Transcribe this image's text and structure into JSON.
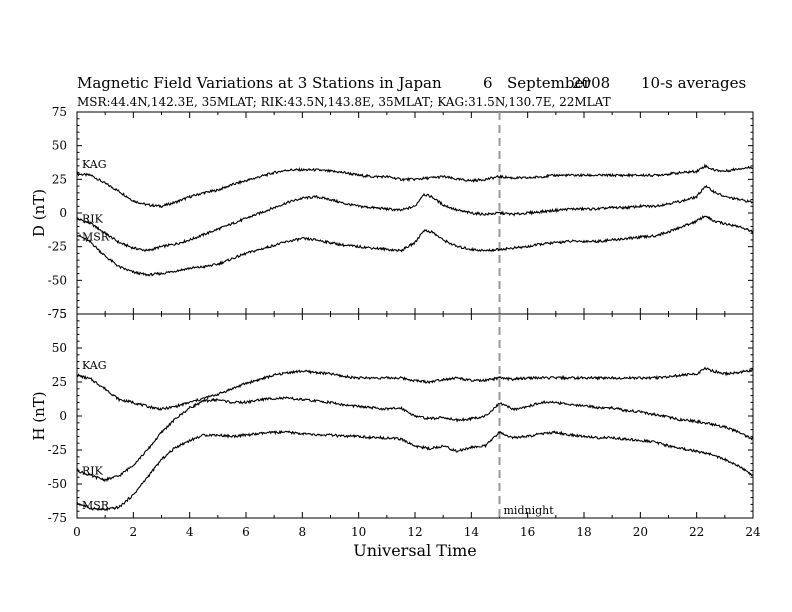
{
  "header": {
    "title": "Magnetic Field Variations at 3 Stations in Japan",
    "day": "6",
    "month": "September",
    "year": "2008",
    "averaging": "10-s averages",
    "stations_line": "MSR:44.4N,142.3E, 35MLAT;  RIK:43.5N,143.8E, 35MLAT;  KAG:31.5N,130.7E, 22MLAT"
  },
  "colors": {
    "trace": "#000000",
    "midnight_line": "#999999"
  },
  "chart_data": [
    {
      "type": "line",
      "ylabel": "D (nT)",
      "ylim": [
        -75,
        75
      ],
      "yticks": [
        75,
        50,
        25,
        0,
        -25,
        -50,
        -75
      ],
      "xlim": [
        0,
        24
      ],
      "grid": false,
      "series": [
        {
          "name": "KAG",
          "x": [
            0,
            0.5,
            1,
            1.5,
            2,
            2.5,
            3,
            3.5,
            4,
            4.5,
            5,
            5.5,
            6,
            6.5,
            7,
            7.5,
            8,
            8.5,
            9,
            9.5,
            10,
            10.5,
            11,
            11.5,
            12,
            12.5,
            13,
            13.5,
            14,
            14.5,
            15,
            15.5,
            16,
            16.5,
            17,
            17.5,
            18,
            18.5,
            19,
            19.5,
            20,
            20.5,
            21,
            21.5,
            22,
            22.3,
            22.6,
            23,
            23.5,
            24
          ],
          "y": [
            29,
            28,
            22,
            16,
            9,
            6,
            5,
            8,
            12,
            15,
            17,
            21,
            24,
            27,
            30,
            32,
            32,
            32,
            31,
            30,
            28,
            27,
            27,
            25,
            25,
            26,
            27,
            25,
            24,
            25,
            27,
            26,
            26,
            27,
            28,
            28,
            28,
            28,
            28,
            28,
            28,
            28,
            29,
            30,
            31,
            35,
            32,
            31,
            33,
            34
          ]
        },
        {
          "name": "RIK",
          "x": [
            0,
            0.5,
            1,
            1.5,
            2,
            2.5,
            3,
            3.5,
            4,
            4.5,
            5,
            5.5,
            6,
            6.5,
            7,
            7.5,
            8,
            8.5,
            9,
            9.5,
            10,
            10.5,
            11,
            11.5,
            12,
            12.3,
            12.6,
            13,
            13.5,
            14,
            14.5,
            15,
            15.5,
            16,
            16.5,
            17,
            17.5,
            18,
            18.5,
            19,
            19.5,
            20,
            20.5,
            21,
            21.5,
            22,
            22.3,
            22.6,
            23,
            23.5,
            24
          ],
          "y": [
            -4,
            -8,
            -15,
            -22,
            -26,
            -28,
            -25,
            -23,
            -20,
            -16,
            -12,
            -8,
            -4,
            0,
            4,
            8,
            11,
            12,
            10,
            7,
            5,
            4,
            3,
            2,
            5,
            14,
            12,
            6,
            2,
            0,
            -1,
            0,
            -1,
            0,
            1,
            2,
            3,
            3,
            3,
            4,
            4,
            5,
            5,
            7,
            9,
            12,
            20,
            16,
            12,
            10,
            8
          ]
        },
        {
          "name": "MSR",
          "x": [
            0,
            0.5,
            1,
            1.5,
            2,
            2.5,
            3,
            3.5,
            4,
            4.5,
            5,
            5.5,
            6,
            6.5,
            7,
            7.5,
            8,
            8.5,
            9,
            9.5,
            10,
            10.5,
            11,
            11.5,
            12,
            12.3,
            12.6,
            13,
            13.5,
            14,
            14.5,
            15,
            15.5,
            16,
            16.5,
            17,
            17.5,
            18,
            18.5,
            19,
            19.5,
            20,
            20.5,
            21,
            21.5,
            22,
            22.3,
            22.6,
            23,
            23.5,
            24
          ],
          "y": [
            -16,
            -22,
            -32,
            -40,
            -44,
            -46,
            -45,
            -43,
            -41,
            -40,
            -38,
            -34,
            -30,
            -27,
            -24,
            -21,
            -19,
            -20,
            -22,
            -24,
            -25,
            -26,
            -27,
            -28,
            -22,
            -13,
            -14,
            -20,
            -25,
            -27,
            -28,
            -27,
            -26,
            -25,
            -23,
            -22,
            -21,
            -21,
            -21,
            -20,
            -19,
            -18,
            -17,
            -14,
            -10,
            -6,
            -2,
            -6,
            -8,
            -10,
            -14
          ]
        }
      ]
    },
    {
      "type": "line",
      "ylabel": "H (nT)",
      "ylim": [
        -75,
        75
      ],
      "yticks": [
        75,
        50,
        25,
        0,
        -25,
        -50,
        -75
      ],
      "xlim": [
        0,
        24
      ],
      "xticks": [
        0,
        2,
        4,
        6,
        8,
        10,
        12,
        14,
        16,
        18,
        20,
        22,
        24
      ],
      "xlabel": "Universal Time",
      "grid": false,
      "annotations": [
        {
          "text": "midnight",
          "x": 15
        }
      ],
      "series": [
        {
          "name": "KAG",
          "x": [
            0,
            0.5,
            1,
            1.5,
            2,
            2.5,
            3,
            3.5,
            4,
            4.5,
            5,
            5.5,
            6,
            6.5,
            7,
            7.5,
            8,
            8.5,
            9,
            9.5,
            10,
            10.5,
            11,
            11.5,
            12,
            12.5,
            13,
            13.5,
            14,
            14.5,
            15,
            15.5,
            16,
            16.5,
            17,
            17.5,
            18,
            18.5,
            19,
            19.5,
            20,
            20.5,
            21,
            21.5,
            22,
            22.3,
            22.6,
            23,
            23.5,
            24
          ],
          "y": [
            30,
            27,
            20,
            12,
            10,
            7,
            5,
            7,
            10,
            13,
            16,
            20,
            24,
            27,
            30,
            32,
            33,
            32,
            31,
            29,
            28,
            28,
            28,
            28,
            26,
            25,
            27,
            28,
            26,
            26,
            28,
            27,
            28,
            28,
            28,
            28,
            28,
            28,
            28,
            28,
            28,
            28,
            29,
            30,
            31,
            35,
            33,
            31,
            32,
            34
          ]
        },
        {
          "name": "RIK",
          "x": [
            0,
            0.5,
            1,
            1.5,
            2,
            2.5,
            3,
            3.5,
            4,
            4.5,
            5,
            5.5,
            6,
            6.5,
            7,
            7.5,
            8,
            8.5,
            9,
            9.5,
            10,
            10.5,
            11,
            11.5,
            12,
            12.5,
            13,
            13.5,
            14,
            14.5,
            15,
            15.2,
            15.5,
            16,
            16.5,
            17,
            17.5,
            18,
            18.5,
            19,
            19.5,
            20,
            20.5,
            21,
            21.5,
            22,
            22.5,
            23,
            23.5,
            24
          ],
          "y": [
            -40,
            -44,
            -47,
            -44,
            -36,
            -25,
            -12,
            -2,
            6,
            11,
            12,
            10,
            10,
            12,
            13,
            13,
            12,
            11,
            10,
            8,
            7,
            6,
            5,
            6,
            0,
            -2,
            -1,
            -3,
            -2,
            0,
            9,
            8,
            5,
            7,
            10,
            10,
            8,
            8,
            6,
            6,
            4,
            3,
            1,
            -1,
            -3,
            -4,
            -6,
            -8,
            -12,
            -17
          ]
        },
        {
          "name": "MSR",
          "x": [
            0,
            0.5,
            1,
            1.5,
            2,
            2.5,
            3,
            3.5,
            4,
            4.5,
            5,
            5.5,
            6,
            6.5,
            7,
            7.5,
            8,
            8.5,
            9,
            9.5,
            10,
            10.5,
            11,
            11.5,
            12,
            12.5,
            13,
            13.5,
            14,
            14.5,
            15,
            15.2,
            15.5,
            16,
            16.5,
            17,
            17.5,
            18,
            18.5,
            19,
            19.5,
            20,
            20.5,
            21,
            21.5,
            22,
            22.5,
            23,
            23.5,
            24
          ],
          "y": [
            -64,
            -68,
            -69,
            -67,
            -58,
            -45,
            -32,
            -23,
            -18,
            -14,
            -14,
            -15,
            -14,
            -13,
            -12,
            -12,
            -13,
            -14,
            -14,
            -15,
            -15,
            -16,
            -16,
            -17,
            -22,
            -24,
            -22,
            -26,
            -23,
            -22,
            -12,
            -14,
            -16,
            -15,
            -13,
            -12,
            -14,
            -15,
            -16,
            -16,
            -17,
            -18,
            -19,
            -22,
            -24,
            -26,
            -28,
            -32,
            -37,
            -44
          ]
        }
      ]
    }
  ]
}
